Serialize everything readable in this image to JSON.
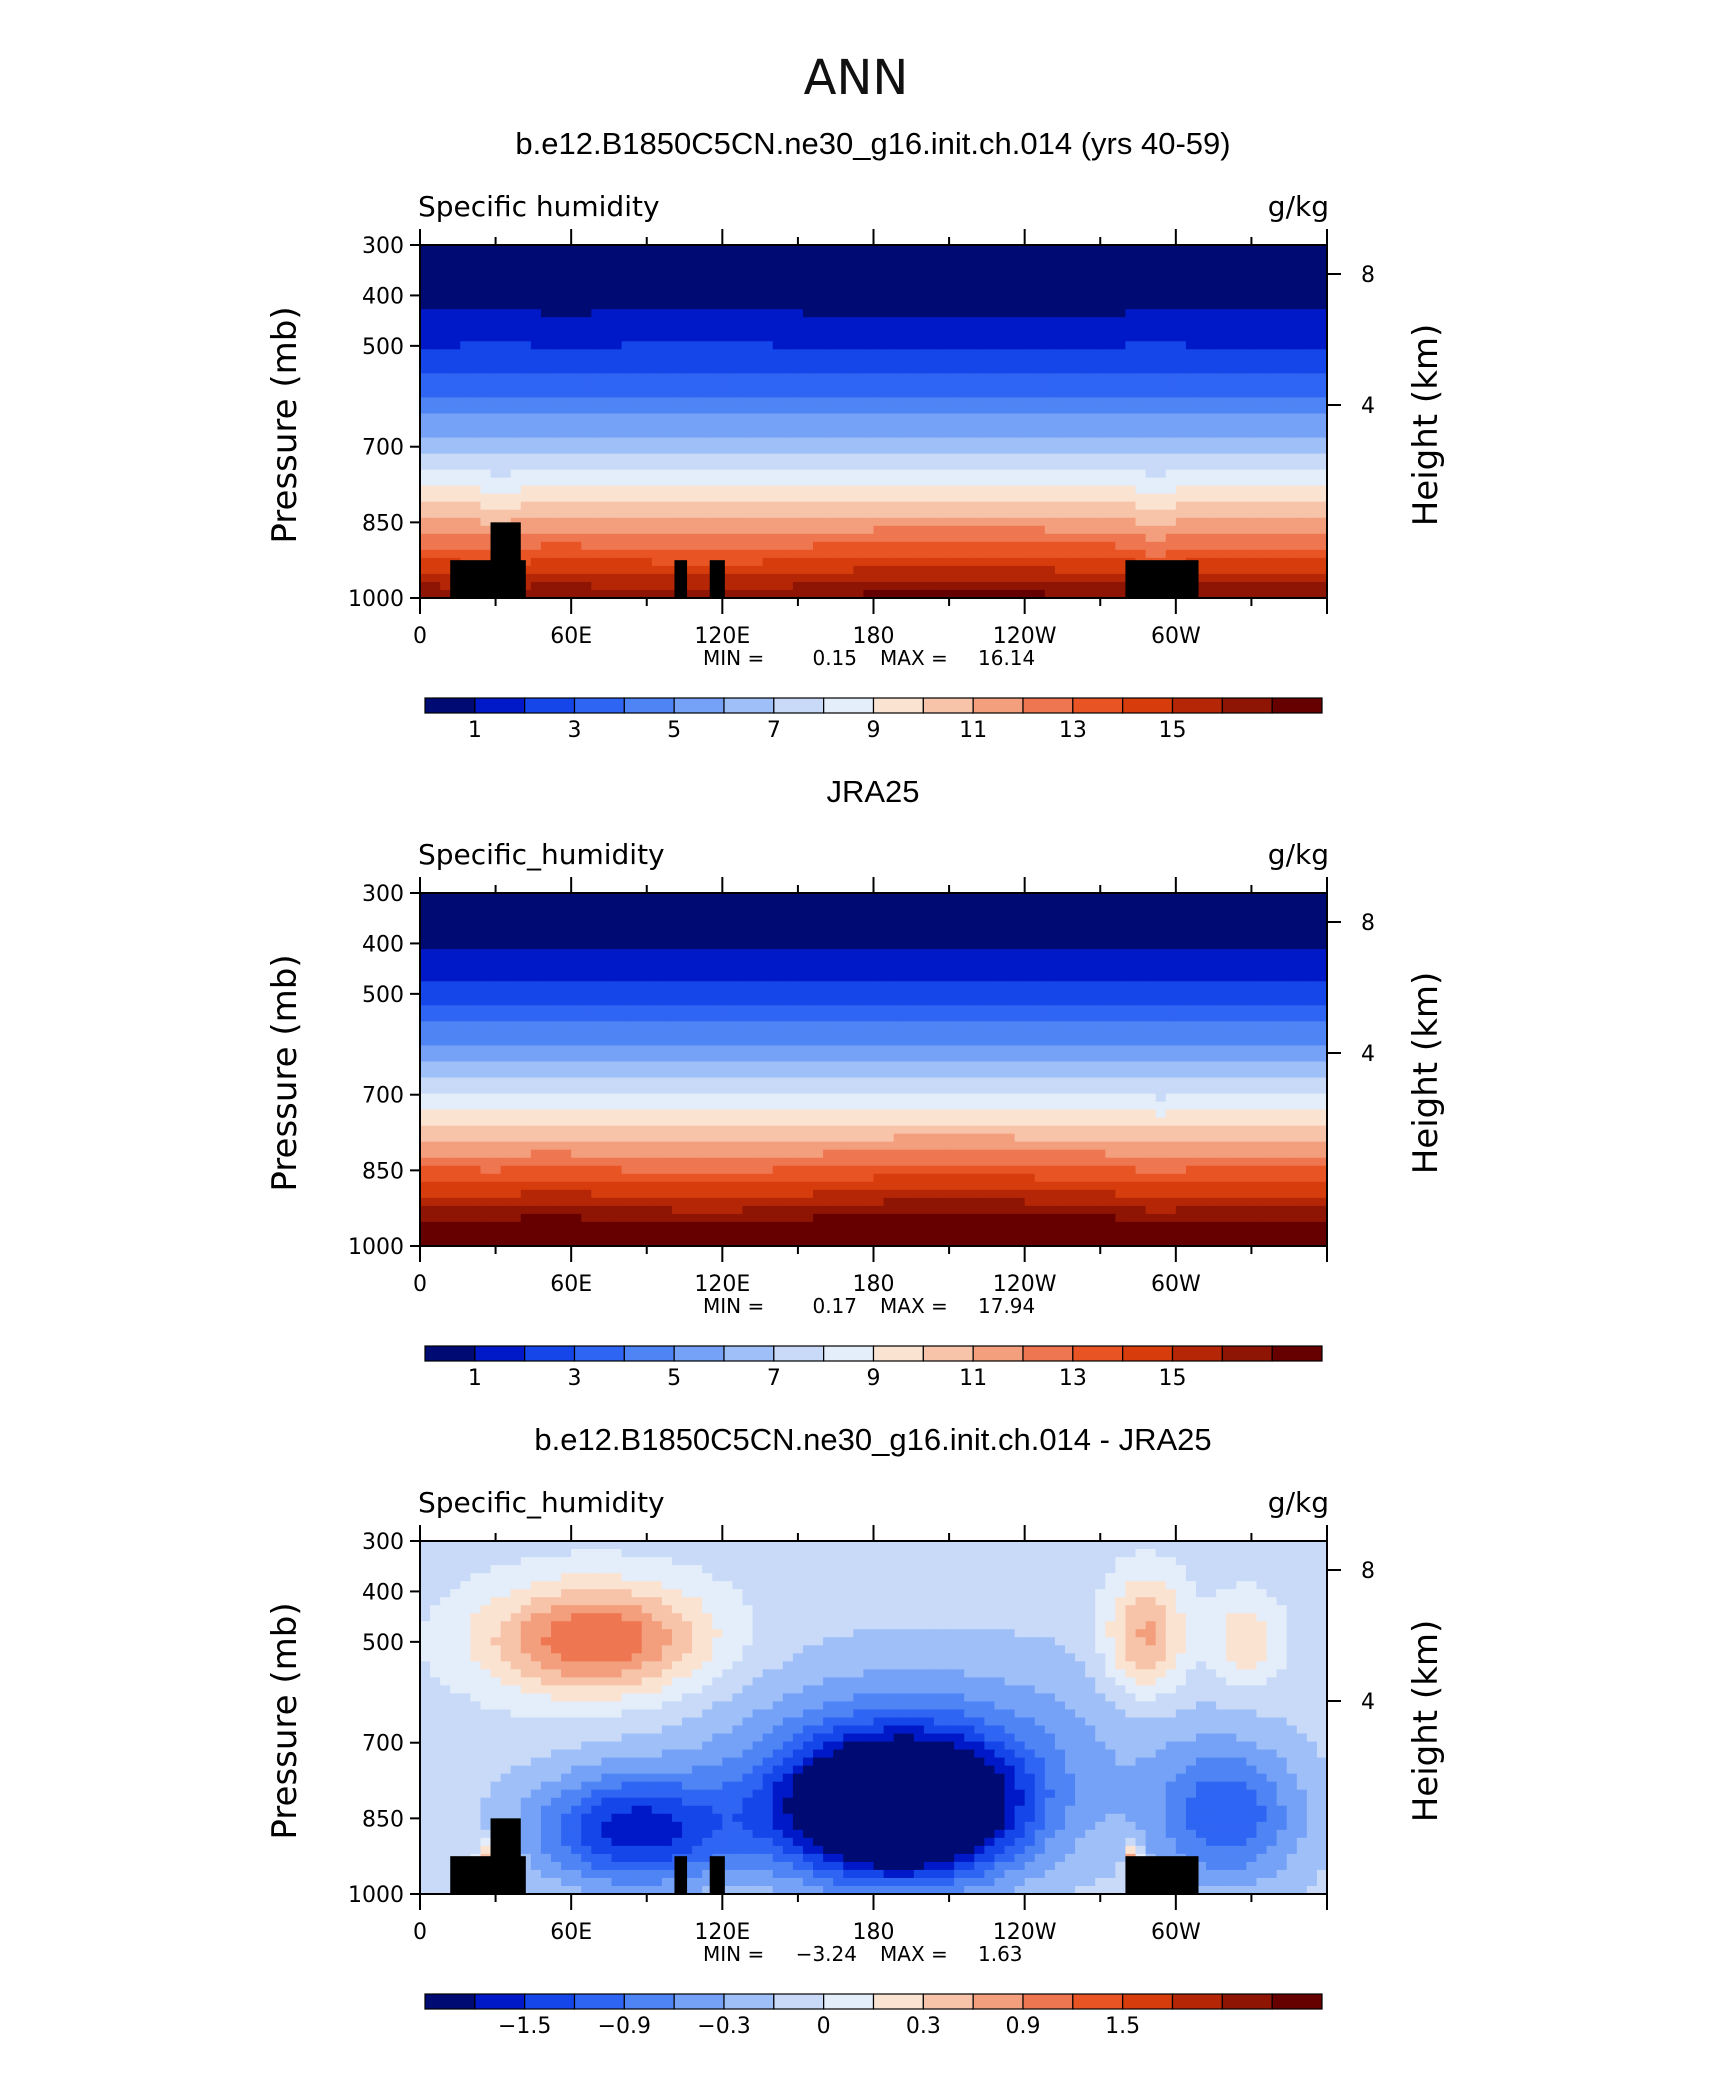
{
  "figure": {
    "main_title": "ANN"
  },
  "chart_data": [
    {
      "type": "heatmap",
      "title": "b.e12.B1850C5CN.ne30_g16.init.ch.014 (yrs 40-59)",
      "left_string": "Specific  humidity",
      "right_string": "g/kg",
      "ylabel": "Pressure (mb)",
      "ylabel_right": "Height (km)",
      "xticks": [
        "0",
        "60E",
        "120E",
        "180",
        "120W",
        "60W"
      ],
      "yticks": [
        "300",
        "400",
        "500",
        "700",
        "850",
        "1000"
      ],
      "yticks_right": [
        "8",
        "4"
      ],
      "min_label": "MIN =",
      "min_value": "0.15",
      "max_label": "MAX =",
      "max_value": "16.14",
      "colorbar_labels": [
        "1",
        "3",
        "5",
        "7",
        "9",
        "11",
        "13",
        "15"
      ],
      "levels": [
        0.5,
        16
      ],
      "topo_mask": true
    },
    {
      "type": "heatmap",
      "title": "JRA25",
      "left_string": "Specific_humidity",
      "right_string": "g/kg",
      "ylabel": "Pressure (mb)",
      "ylabel_right": "Height (km)",
      "xticks": [
        "0",
        "60E",
        "120E",
        "180",
        "120W",
        "60W"
      ],
      "yticks": [
        "300",
        "400",
        "500",
        "700",
        "850",
        "1000"
      ],
      "yticks_right": [
        "8",
        "4"
      ],
      "min_label": "MIN =",
      "min_value": "0.17",
      "max_label": "MAX =",
      "max_value": "17.94",
      "colorbar_labels": [
        "1",
        "3",
        "5",
        "7",
        "9",
        "11",
        "13",
        "15"
      ],
      "levels": [
        0.5,
        16
      ],
      "topo_mask": false
    },
    {
      "type": "heatmap",
      "title": "b.e12.B1850C5CN.ne30_g16.init.ch.014 - JRA25",
      "left_string": "Specific_humidity",
      "right_string": "g/kg",
      "ylabel": "Pressure (mb)",
      "ylabel_right": "Height (km)",
      "xticks": [
        "0",
        "60E",
        "120E",
        "180",
        "120W",
        "60W"
      ],
      "yticks": [
        "300",
        "400",
        "500",
        "700",
        "850",
        "1000"
      ],
      "yticks_right": [
        "8",
        "4"
      ],
      "min_label": "MIN =",
      "min_value": "−3.24",
      "max_label": "MAX =",
      "max_value": "1.63",
      "colorbar_labels": [
        "−1.5",
        "−0.9",
        "−0.3",
        "0",
        "0.3",
        "0.9",
        "1.5"
      ],
      "levels": [
        -2.1,
        2.1
      ],
      "topo_mask": true
    }
  ],
  "colormap": [
    "#000a73",
    "#0019c8",
    "#1446ea",
    "#2f65f3",
    "#4f84f5",
    "#75a2f6",
    "#9ebff8",
    "#c8daf8",
    "#e4eefa",
    "#fbe3d2",
    "#f7c4aa",
    "#f39e7c",
    "#ee7650",
    "#e85424",
    "#d73d0c",
    "#b52606",
    "#8e1404",
    "#660000"
  ],
  "mask_color": "#000000"
}
